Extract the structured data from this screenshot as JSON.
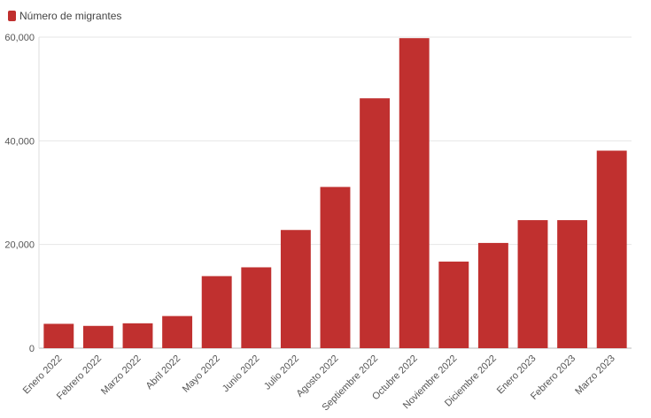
{
  "chart_data": {
    "type": "bar",
    "title": "",
    "xlabel": "",
    "ylabel": "",
    "categories": [
      "Enero 2022",
      "Febrero 2022",
      "Marzo 2022",
      "Abril 2022",
      "Mayo 2022",
      "Junio 2022",
      "Julio 2022",
      "Agosto 2022",
      "Septiembre 2022",
      "Octubre 2022",
      "Noviembre 2022",
      "Diciembre 2022",
      "Enero 2023",
      "Febrero 2023",
      "Marzo 2023"
    ],
    "series": [
      {
        "name": "Número de migrantes",
        "color": "#c0302f",
        "values": [
          4700,
          4300,
          4800,
          6200,
          13900,
          15600,
          22800,
          31100,
          48200,
          59800,
          16700,
          20300,
          24700,
          24700,
          38100
        ]
      }
    ],
    "ylim": [
      0,
      60000
    ],
    "yticks": [
      0,
      20000,
      40000,
      60000
    ],
    "ytick_labels": [
      "0",
      "20,000",
      "40,000",
      "60,000"
    ],
    "grid": true,
    "legend_position": "top-left"
  }
}
